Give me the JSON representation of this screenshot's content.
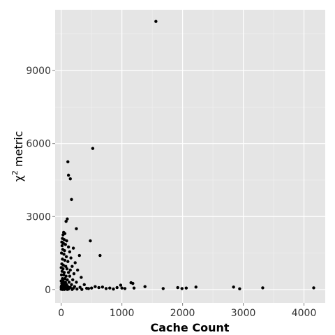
{
  "chart_data": {
    "type": "scatter",
    "title": "",
    "xlabel": "Cache Count",
    "ylabel_base": "χ",
    "ylabel_sup": "2",
    "ylabel_rest": " metric",
    "xlim": [
      -100,
      4350
    ],
    "ylim": [
      -550,
      11500
    ],
    "x_ticks": [
      0,
      1000,
      2000,
      3000,
      4000
    ],
    "x_tick_labels": [
      "0",
      "1000",
      "2000",
      "3000",
      "4000"
    ],
    "y_ticks": [
      0,
      3000,
      6000,
      9000
    ],
    "y_tick_labels": [
      "0",
      "3000",
      "6000",
      "9000"
    ],
    "grid": true,
    "panel_color": "#e5e5e5",
    "grid_major_color": "#ffffff",
    "point_color": "#000000",
    "points": [
      [
        1560,
        11020
      ],
      [
        520,
        5800
      ],
      [
        110,
        5250
      ],
      [
        120,
        4700
      ],
      [
        150,
        4550
      ],
      [
        170,
        3700
      ],
      [
        100,
        2900
      ],
      [
        80,
        2800
      ],
      [
        250,
        2500
      ],
      [
        40,
        2350
      ],
      [
        60,
        2300
      ],
      [
        30,
        2250
      ],
      [
        20,
        2100
      ],
      [
        50,
        2050
      ],
      [
        90,
        2000
      ],
      [
        480,
        2000
      ],
      [
        10,
        1950
      ],
      [
        35,
        1900
      ],
      [
        70,
        1850
      ],
      [
        15,
        1800
      ],
      [
        120,
        1750
      ],
      [
        200,
        1700
      ],
      [
        25,
        1650
      ],
      [
        55,
        1600
      ],
      [
        140,
        1550
      ],
      [
        5,
        1500
      ],
      [
        45,
        1450
      ],
      [
        300,
        1400
      ],
      [
        640,
        1400
      ],
      [
        85,
        1350
      ],
      [
        160,
        1300
      ],
      [
        20,
        1250
      ],
      [
        60,
        1200
      ],
      [
        110,
        1150
      ],
      [
        230,
        1100
      ],
      [
        10,
        1050
      ],
      [
        35,
        1000
      ],
      [
        75,
        950
      ],
      [
        180,
        950
      ],
      [
        0,
        900
      ],
      [
        30,
        850
      ],
      [
        95,
        850
      ],
      [
        150,
        800
      ],
      [
        270,
        800
      ],
      [
        15,
        750
      ],
      [
        50,
        700
      ],
      [
        120,
        700
      ],
      [
        210,
        650
      ],
      [
        5,
        600
      ],
      [
        40,
        600
      ],
      [
        80,
        550
      ],
      [
        140,
        550
      ],
      [
        330,
        500
      ],
      [
        20,
        450
      ],
      [
        60,
        450
      ],
      [
        100,
        400
      ],
      [
        190,
        400
      ],
      [
        0,
        350
      ],
      [
        30,
        350
      ],
      [
        70,
        300
      ],
      [
        130,
        300
      ],
      [
        250,
        300
      ],
      [
        10,
        250
      ],
      [
        45,
        250
      ],
      [
        90,
        200
      ],
      [
        170,
        200
      ],
      [
        380,
        200
      ],
      [
        5,
        150
      ],
      [
        35,
        150
      ],
      [
        65,
        150
      ],
      [
        110,
        120
      ],
      [
        220,
        120
      ],
      [
        0,
        100
      ],
      [
        25,
        100
      ],
      [
        55,
        90
      ],
      [
        150,
        90
      ],
      [
        310,
        90
      ],
      [
        15,
        60
      ],
      [
        40,
        60
      ],
      [
        80,
        50
      ],
      [
        200,
        50
      ],
      [
        420,
        50
      ],
      [
        5,
        30
      ],
      [
        30,
        30
      ],
      [
        60,
        20
      ],
      [
        120,
        20
      ],
      [
        260,
        20
      ],
      [
        0,
        10
      ],
      [
        20,
        5
      ],
      [
        50,
        5
      ],
      [
        100,
        5
      ],
      [
        180,
        5
      ],
      [
        340,
        5
      ],
      [
        450,
        40
      ],
      [
        500,
        60
      ],
      [
        560,
        120
      ],
      [
        620,
        80
      ],
      [
        680,
        100
      ],
      [
        740,
        40
      ],
      [
        800,
        60
      ],
      [
        860,
        20
      ],
      [
        920,
        80
      ],
      [
        980,
        180
      ],
      [
        1000,
        60
      ],
      [
        1050,
        40
      ],
      [
        1150,
        280
      ],
      [
        1180,
        250
      ],
      [
        1200,
        60
      ],
      [
        1380,
        120
      ],
      [
        1680,
        40
      ],
      [
        1920,
        80
      ],
      [
        1990,
        40
      ],
      [
        2060,
        60
      ],
      [
        2220,
        100
      ],
      [
        2840,
        100
      ],
      [
        2940,
        30
      ],
      [
        3320,
        70
      ],
      [
        4160,
        70
      ]
    ]
  }
}
